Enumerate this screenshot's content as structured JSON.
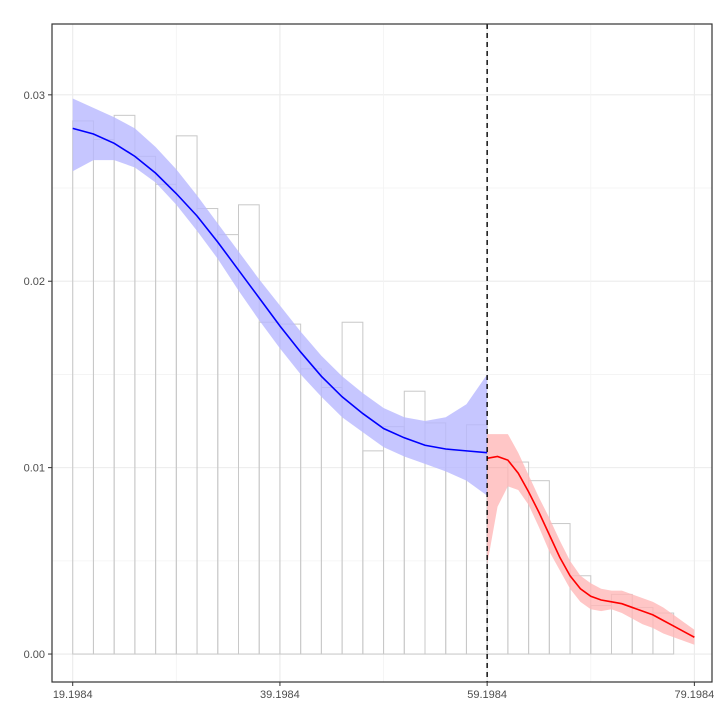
{
  "chart_data": {
    "type": "bar",
    "title": "",
    "xlabel": "",
    "ylabel": "",
    "xlim": [
      17.2,
      80.9
    ],
    "ylim": [
      -0.0015,
      0.0338
    ],
    "x_ticks": [
      19.1984,
      39.1984,
      59.1984,
      79.1984
    ],
    "x_tick_labels": [
      "19.1984",
      "39.1984",
      "59.1984",
      "79.1984"
    ],
    "y_ticks": [
      0.0,
      0.01,
      0.02,
      0.03
    ],
    "y_tick_labels": [
      "0.00",
      "0.01",
      "0.02",
      "0.03"
    ],
    "grid": true,
    "cutoff": 59.1984,
    "histogram": {
      "bin_width": 2,
      "bins": [
        {
          "x0": 19.2,
          "value": 0.0286
        },
        {
          "x0": 21.2,
          "value": 0.0276
        },
        {
          "x0": 23.2,
          "value": 0.0289
        },
        {
          "x0": 25.2,
          "value": 0.0267
        },
        {
          "x0": 27.2,
          "value": 0.0252
        },
        {
          "x0": 29.2,
          "value": 0.0278
        },
        {
          "x0": 31.2,
          "value": 0.0239
        },
        {
          "x0": 33.2,
          "value": 0.0225
        },
        {
          "x0": 35.2,
          "value": 0.0241
        },
        {
          "x0": 37.2,
          "value": 0.0178
        },
        {
          "x0": 39.2,
          "value": 0.0177
        },
        {
          "x0": 41.2,
          "value": 0.0153
        },
        {
          "x0": 43.2,
          "value": 0.0143
        },
        {
          "x0": 45.2,
          "value": 0.0178
        },
        {
          "x0": 47.2,
          "value": 0.0109
        },
        {
          "x0": 49.2,
          "value": 0.0122
        },
        {
          "x0": 51.2,
          "value": 0.0141
        },
        {
          "x0": 53.2,
          "value": 0.0124
        },
        {
          "x0": 55.2,
          "value": 0.0109
        },
        {
          "x0": 57.2,
          "value": 0.0123
        },
        {
          "x0": 59.2,
          "value": 0.01
        },
        {
          "x0": 61.2,
          "value": 0.0103
        },
        {
          "x0": 63.2,
          "value": 0.0093
        },
        {
          "x0": 65.2,
          "value": 0.007
        },
        {
          "x0": 67.2,
          "value": 0.0042
        },
        {
          "x0": 69.2,
          "value": 0.0026
        },
        {
          "x0": 71.2,
          "value": 0.0032
        },
        {
          "x0": 73.2,
          "value": 0.0025
        },
        {
          "x0": 75.2,
          "value": 0.0022
        }
      ]
    },
    "fits": [
      {
        "color": "#0000ff",
        "band_color": "#b8b8ff",
        "x": [
          19.2,
          21.2,
          23.2,
          25.2,
          27.2,
          29.2,
          31.2,
          33.2,
          35.2,
          37.2,
          39.2,
          41.2,
          43.2,
          45.2,
          47.2,
          49.2,
          51.2,
          53.2,
          55.2,
          57.2,
          59.2
        ],
        "y": [
          0.0282,
          0.0279,
          0.0274,
          0.0267,
          0.0258,
          0.0247,
          0.0235,
          0.0221,
          0.0206,
          0.0191,
          0.0176,
          0.0162,
          0.0149,
          0.0138,
          0.0129,
          0.0121,
          0.0116,
          0.0112,
          0.011,
          0.0109,
          0.0108
        ],
        "lower": [
          0.0259,
          0.0265,
          0.0265,
          0.0261,
          0.0253,
          0.0241,
          0.0227,
          0.0212,
          0.0195,
          0.0179,
          0.0164,
          0.015,
          0.0138,
          0.0127,
          0.0119,
          0.0111,
          0.0106,
          0.0102,
          0.0098,
          0.0093,
          0.0085
        ],
        "upper": [
          0.0298,
          0.0293,
          0.0288,
          0.0282,
          0.0272,
          0.026,
          0.0246,
          0.0231,
          0.0216,
          0.0201,
          0.0187,
          0.0173,
          0.016,
          0.0149,
          0.014,
          0.0132,
          0.0127,
          0.0125,
          0.0127,
          0.0134,
          0.015
        ]
      },
      {
        "color": "#ff0000",
        "band_color": "#ffb8b8",
        "x": [
          59.2,
          60.2,
          61.2,
          62.2,
          63.2,
          64.2,
          65.2,
          66.2,
          67.2,
          68.2,
          69.2,
          70.2,
          71.2,
          72.2,
          73.2,
          74.2,
          75.2,
          76.2,
          77.2,
          78.2,
          79.2
        ],
        "y": [
          0.0105,
          0.0106,
          0.0104,
          0.0097,
          0.0087,
          0.0076,
          0.0064,
          0.0052,
          0.0042,
          0.0035,
          0.0031,
          0.0029,
          0.0028,
          0.0027,
          0.0025,
          0.0023,
          0.0021,
          0.0018,
          0.0015,
          0.0012,
          0.0009
        ],
        "lower": [
          0.0048,
          0.0079,
          0.009,
          0.0088,
          0.008,
          0.0068,
          0.0055,
          0.0045,
          0.0035,
          0.0028,
          0.0024,
          0.0023,
          0.0024,
          0.0022,
          0.0019,
          0.0016,
          0.0014,
          0.0011,
          0.0009,
          0.0007,
          0.0005
        ],
        "upper": [
          0.0118,
          0.0118,
          0.0118,
          0.0108,
          0.0096,
          0.0084,
          0.0073,
          0.0061,
          0.005,
          0.0042,
          0.0038,
          0.0035,
          0.0034,
          0.0034,
          0.0032,
          0.003,
          0.0028,
          0.0025,
          0.0021,
          0.0017,
          0.0013
        ]
      }
    ]
  }
}
